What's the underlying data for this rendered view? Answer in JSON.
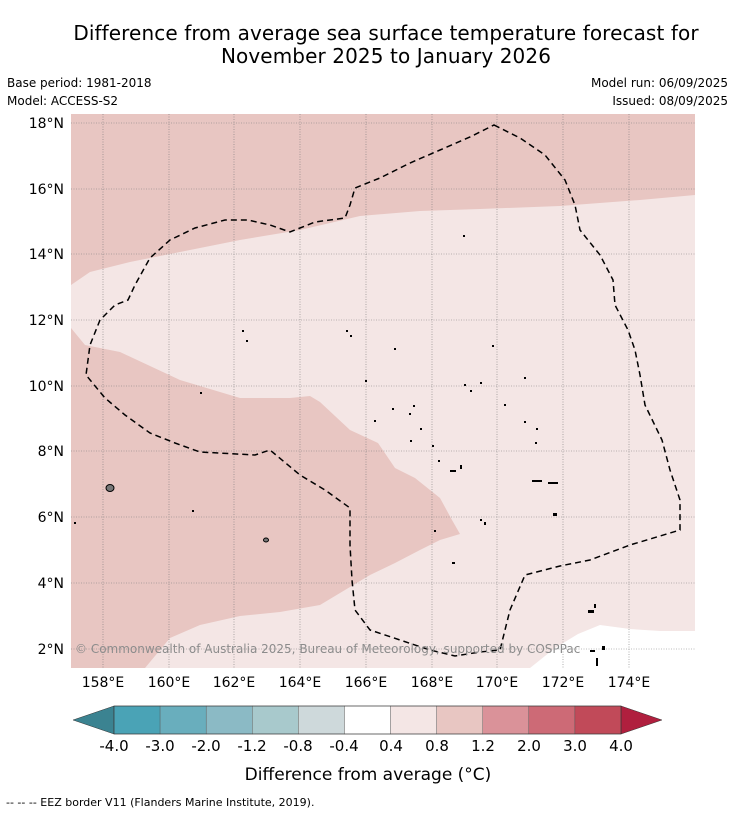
{
  "header": {
    "title_line1": "Difference from average sea surface temperature forecast for",
    "title_line2": "November 2025 to January 2026",
    "base_period": "Base period: 1981-2018",
    "model": "Model: ACCESS-S2",
    "model_run": "Model run: 06/09/2025",
    "issued": "Issued: 08/09/2025"
  },
  "map": {
    "lat_labels": [
      "18°N",
      "16°N",
      "14°N",
      "12°N",
      "10°N",
      "8°N",
      "6°N",
      "4°N",
      "2°N"
    ],
    "lon_labels": [
      "158°E",
      "160°E",
      "162°E",
      "164°E",
      "166°E",
      "168°E",
      "170°E",
      "172°E",
      "174°E"
    ],
    "copyright": "© Commonwealth of Australia 2025, Bureau of Meteorology, supported by COSPPac",
    "layers": {
      "anomaly_0_4_to_0_8": "#f4e6e5",
      "anomaly_0_8_to_1_2": "#e8c6c2",
      "eez_border": "dashed"
    }
  },
  "colorbar": {
    "ticks": [
      "-4.0",
      "-3.0",
      "-2.0",
      "-1.2",
      "-0.8",
      "-0.4",
      "0.4",
      "0.8",
      "1.2",
      "2.0",
      "3.0",
      "4.0"
    ],
    "colors": [
      "#4aa3b6",
      "#69aebd",
      "#8bbac5",
      "#a8c9cc",
      "#ced9db",
      "#ffffff",
      "#f4e6e5",
      "#e8c6c2",
      "#da9299",
      "#cd6a76",
      "#c14a59"
    ],
    "under_color": "#3b8391",
    "over_color": "#b01f3e",
    "label": "Difference from average (°C)"
  },
  "footer": {
    "eez_legend": "-- -- -- EEZ border V11 (Flanders Marine Institute, 2019)."
  }
}
